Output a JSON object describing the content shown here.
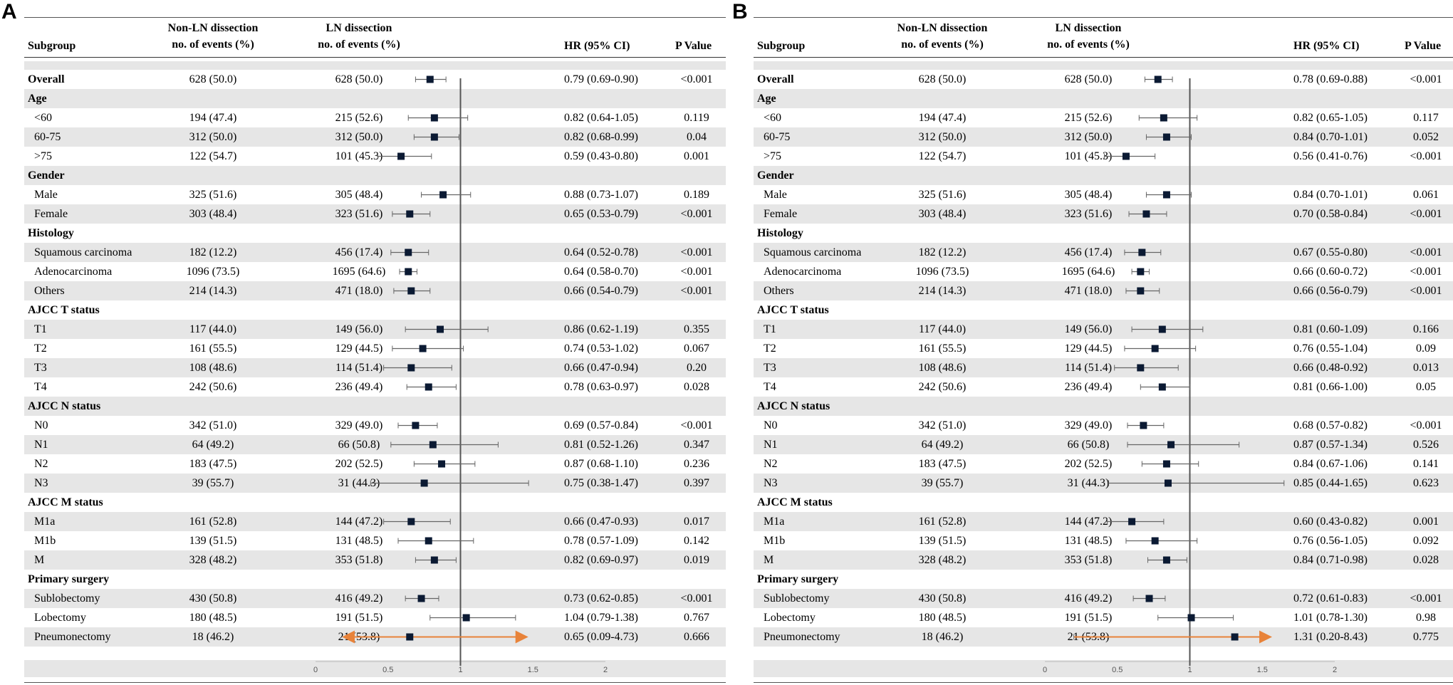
{
  "chart_data": [
    {
      "type": "forest",
      "panel": "A",
      "headers": {
        "subgroup": "Subgroup",
        "nonln_line1": "Non-LN dissection",
        "nonln_line2": "no. of events (%)",
        "ln_line1": "LN dissection",
        "ln_line2": "no. of events (%)",
        "hr": "HR (95% CI)",
        "p": "P Value"
      },
      "xlim": [
        0,
        2
      ],
      "ref_line": 1,
      "ticks": [
        {
          "v": 0,
          "t": "0"
        },
        {
          "v": 0.5,
          "t": "0.5"
        },
        {
          "v": 1,
          "t": "1"
        },
        {
          "v": 1.5,
          "t": "1.5"
        },
        {
          "v": 2,
          "t": "2"
        }
      ],
      "rows": [
        {
          "label": "Overall",
          "kind": "group",
          "nonln": "628 (50.0)",
          "ln": "628 (50.0)",
          "hr_text": "0.79 (0.69-0.90)",
          "p": "<0.001",
          "hr": 0.79,
          "lo": 0.69,
          "hi": 0.9
        },
        {
          "label": "Age",
          "kind": "group"
        },
        {
          "label": "<60",
          "kind": "item",
          "nonln": "194 (47.4)",
          "ln": "215 (52.6)",
          "hr_text": "0.82 (0.64-1.05)",
          "p": "0.119",
          "hr": 0.82,
          "lo": 0.64,
          "hi": 1.05
        },
        {
          "label": "60-75",
          "kind": "item",
          "nonln": "312 (50.0)",
          "ln": "312 (50.0)",
          "hr_text": "0.82 (0.68-0.99)",
          "p": "0.04",
          "hr": 0.82,
          "lo": 0.68,
          "hi": 0.99
        },
        {
          "label": ">75",
          "kind": "item",
          "nonln": "122 (54.7)",
          "ln": "101 (45.3)",
          "hr_text": "0.59 (0.43-0.80)",
          "p": "0.001",
          "hr": 0.59,
          "lo": 0.43,
          "hi": 0.8
        },
        {
          "label": "Gender",
          "kind": "group"
        },
        {
          "label": "Male",
          "kind": "item",
          "nonln": "325 (51.6)",
          "ln": "305 (48.4)",
          "hr_text": "0.88 (0.73-1.07)",
          "p": "0.189",
          "hr": 0.88,
          "lo": 0.73,
          "hi": 1.07
        },
        {
          "label": "Female",
          "kind": "item",
          "nonln": "303 (48.4)",
          "ln": "323 (51.6)",
          "hr_text": "0.65 (0.53-0.79)",
          "p": "<0.001",
          "hr": 0.65,
          "lo": 0.53,
          "hi": 0.79
        },
        {
          "label": "Histology",
          "kind": "group"
        },
        {
          "label": "Squamous carcinoma",
          "kind": "item",
          "nonln": "182 (12.2)",
          "ln": "456 (17.4)",
          "hr_text": "0.64 (0.52-0.78)",
          "p": "<0.001",
          "hr": 0.64,
          "lo": 0.52,
          "hi": 0.78
        },
        {
          "label": "Adenocarcinoma",
          "kind": "item",
          "nonln": "1096 (73.5)",
          "ln": "1695 (64.6)",
          "hr_text": "0.64 (0.58-0.70)",
          "p": "<0.001",
          "hr": 0.64,
          "lo": 0.58,
          "hi": 0.7
        },
        {
          "label": "Others",
          "kind": "item",
          "nonln": "214 (14.3)",
          "ln": "471 (18.0)",
          "hr_text": "0.66 (0.54-0.79)",
          "p": "<0.001",
          "hr": 0.66,
          "lo": 0.54,
          "hi": 0.79
        },
        {
          "label": "AJCC T status",
          "kind": "group"
        },
        {
          "label": "T1",
          "kind": "item",
          "nonln": "117 (44.0)",
          "ln": "149 (56.0)",
          "hr_text": "0.86 (0.62-1.19)",
          "p": "0.355",
          "hr": 0.86,
          "lo": 0.62,
          "hi": 1.19
        },
        {
          "label": "T2",
          "kind": "item",
          "nonln": "161 (55.5)",
          "ln": "129 (44.5)",
          "hr_text": "0.74 (0.53-1.02)",
          "p": "0.067",
          "hr": 0.74,
          "lo": 0.53,
          "hi": 1.02
        },
        {
          "label": "T3",
          "kind": "item",
          "nonln": "108 (48.6)",
          "ln": "114 (51.4)",
          "hr_text": "0.66 (0.47-0.94)",
          "p": "0.20",
          "hr": 0.66,
          "lo": 0.47,
          "hi": 0.94
        },
        {
          "label": "T4",
          "kind": "item",
          "nonln": "242 (50.6)",
          "ln": "236 (49.4)",
          "hr_text": "0.78 (0.63-0.97)",
          "p": "0.028",
          "hr": 0.78,
          "lo": 0.63,
          "hi": 0.97
        },
        {
          "label": "AJCC N status",
          "kind": "group"
        },
        {
          "label": "N0",
          "kind": "item",
          "nonln": "342 (51.0)",
          "ln": "329 (49.0)",
          "hr_text": "0.69 (0.57-0.84)",
          "p": "<0.001",
          "hr": 0.69,
          "lo": 0.57,
          "hi": 0.84
        },
        {
          "label": "N1",
          "kind": "item",
          "nonln": "64 (49.2)",
          "ln": "66 (50.8)",
          "hr_text": "0.81 (0.52-1.26)",
          "p": "0.347",
          "hr": 0.81,
          "lo": 0.52,
          "hi": 1.26
        },
        {
          "label": "N2",
          "kind": "item",
          "nonln": "183 (47.5)",
          "ln": "202 (52.5)",
          "hr_text": "0.87 (0.68-1.10)",
          "p": "0.236",
          "hr": 0.87,
          "lo": 0.68,
          "hi": 1.1
        },
        {
          "label": "N3",
          "kind": "item",
          "nonln": "39 (55.7)",
          "ln": "31 (44.3)",
          "hr_text": "0.75 (0.38-1.47)",
          "p": "0.397",
          "hr": 0.75,
          "lo": 0.38,
          "hi": 1.47
        },
        {
          "label": "AJCC M status",
          "kind": "group"
        },
        {
          "label": "M1a",
          "kind": "item",
          "nonln": "161 (52.8)",
          "ln": "144 (47.2)",
          "hr_text": "0.66 (0.47-0.93)",
          "p": "0.017",
          "hr": 0.66,
          "lo": 0.47,
          "hi": 0.93
        },
        {
          "label": "M1b",
          "kind": "item",
          "nonln": "139 (51.5)",
          "ln": "131 (48.5)",
          "hr_text": "0.78 (0.57-1.09)",
          "p": "0.142",
          "hr": 0.78,
          "lo": 0.57,
          "hi": 1.09
        },
        {
          "label": "M",
          "kind": "item",
          "nonln": "328 (48.2)",
          "ln": "353 (51.8)",
          "hr_text": "0.82 (0.69-0.97)",
          "p": "0.019",
          "hr": 0.82,
          "lo": 0.69,
          "hi": 0.97
        },
        {
          "label": "Primary surgery",
          "kind": "group"
        },
        {
          "label": "Sublobectomy",
          "kind": "item",
          "nonln": "430 (50.8)",
          "ln": "416 (49.2)",
          "hr_text": "0.73 (0.62-0.85)",
          "p": "<0.001",
          "hr": 0.73,
          "lo": 0.62,
          "hi": 0.85
        },
        {
          "label": "Lobectomy",
          "kind": "item",
          "nonln": "180 (48.5)",
          "ln": "191 (51.5)",
          "hr_text": "1.04 (0.79-1.38)",
          "p": "0.767",
          "hr": 1.04,
          "lo": 0.79,
          "hi": 1.38
        },
        {
          "label": "Pneumonectomy",
          "kind": "item",
          "nonln": "18 (46.2)",
          "ln": "21 (53.8)",
          "hr_text": "0.65 (0.09-4.73)",
          "p": "0.666",
          "hr": 0.65,
          "lo": 0.09,
          "hi": 4.73,
          "arrow_lo": true,
          "arrow_hi": true
        }
      ]
    },
    {
      "type": "forest",
      "panel": "B",
      "headers": {
        "subgroup": "Subgroup",
        "nonln_line1": "Non-LN dissection",
        "nonln_line2": "no. of events (%)",
        "ln_line1": "LN dissection",
        "ln_line2": "no. of events (%)",
        "hr": "HR (95% CI)",
        "p": "P Value"
      },
      "xlim": [
        0,
        2
      ],
      "ref_line": 1,
      "ticks": [
        {
          "v": 0,
          "t": "0"
        },
        {
          "v": 0.5,
          "t": "0.5"
        },
        {
          "v": 1,
          "t": "1"
        },
        {
          "v": 1.5,
          "t": "1.5"
        },
        {
          "v": 2,
          "t": "2"
        }
      ],
      "rows": [
        {
          "label": "Overall",
          "kind": "group",
          "nonln": "628 (50.0)",
          "ln": "628 (50.0)",
          "hr_text": "0.78 (0.69-0.88)",
          "p": "<0.001",
          "hr": 0.78,
          "lo": 0.69,
          "hi": 0.88
        },
        {
          "label": "Age",
          "kind": "group"
        },
        {
          "label": "<60",
          "kind": "item",
          "nonln": "194 (47.4)",
          "ln": "215 (52.6)",
          "hr_text": "0.82 (0.65-1.05)",
          "p": "0.117",
          "hr": 0.82,
          "lo": 0.65,
          "hi": 1.05
        },
        {
          "label": "60-75",
          "kind": "item",
          "nonln": "312 (50.0)",
          "ln": "312 (50.0)",
          "hr_text": "0.84 (0.70-1.01)",
          "p": "0.052",
          "hr": 0.84,
          "lo": 0.7,
          "hi": 1.01
        },
        {
          "label": ">75",
          "kind": "item",
          "nonln": "122 (54.7)",
          "ln": "101 (45.3)",
          "hr_text": "0.56 (0.41-0.76)",
          "p": "<0.001",
          "hr": 0.56,
          "lo": 0.41,
          "hi": 0.76
        },
        {
          "label": "Gender",
          "kind": "group"
        },
        {
          "label": "Male",
          "kind": "item",
          "nonln": "325 (51.6)",
          "ln": "305 (48.4)",
          "hr_text": "0.84 (0.70-1.01)",
          "p": "0.061",
          "hr": 0.84,
          "lo": 0.7,
          "hi": 1.01
        },
        {
          "label": "Female",
          "kind": "item",
          "nonln": "303 (48.4)",
          "ln": "323 (51.6)",
          "hr_text": "0.70 (0.58-0.84)",
          "p": "<0.001",
          "hr": 0.7,
          "lo": 0.58,
          "hi": 0.84
        },
        {
          "label": "Histology",
          "kind": "group"
        },
        {
          "label": "Squamous carcinoma",
          "kind": "item",
          "nonln": "182 (12.2)",
          "ln": "456 (17.4)",
          "hr_text": "0.67 (0.55-0.80)",
          "p": "<0.001",
          "hr": 0.67,
          "lo": 0.55,
          "hi": 0.8
        },
        {
          "label": "Adenocarcinoma",
          "kind": "item",
          "nonln": "1096 (73.5)",
          "ln": "1695 (64.6)",
          "hr_text": "0.66 (0.60-0.72)",
          "p": "<0.001",
          "hr": 0.66,
          "lo": 0.6,
          "hi": 0.72
        },
        {
          "label": "Others",
          "kind": "item",
          "nonln": "214 (14.3)",
          "ln": "471 (18.0)",
          "hr_text": "0.66 (0.56-0.79)",
          "p": "<0.001",
          "hr": 0.66,
          "lo": 0.56,
          "hi": 0.79
        },
        {
          "label": "AJCC T status",
          "kind": "group"
        },
        {
          "label": "T1",
          "kind": "item",
          "nonln": "117 (44.0)",
          "ln": "149 (56.0)",
          "hr_text": "0.81 (0.60-1.09)",
          "p": "0.166",
          "hr": 0.81,
          "lo": 0.6,
          "hi": 1.09
        },
        {
          "label": "T2",
          "kind": "item",
          "nonln": "161 (55.5)",
          "ln": "129 (44.5)",
          "hr_text": "0.76 (0.55-1.04)",
          "p": "0.09",
          "hr": 0.76,
          "lo": 0.55,
          "hi": 1.04
        },
        {
          "label": "T3",
          "kind": "item",
          "nonln": "108 (48.6)",
          "ln": "114 (51.4)",
          "hr_text": "0.66 (0.48-0.92)",
          "p": "0.013",
          "hr": 0.66,
          "lo": 0.48,
          "hi": 0.92
        },
        {
          "label": "T4",
          "kind": "item",
          "nonln": "242 (50.6)",
          "ln": "236 (49.4)",
          "hr_text": "0.81 (0.66-1.00)",
          "p": "0.05",
          "hr": 0.81,
          "lo": 0.66,
          "hi": 1.0
        },
        {
          "label": "AJCC N status",
          "kind": "group"
        },
        {
          "label": "N0",
          "kind": "item",
          "nonln": "342 (51.0)",
          "ln": "329 (49.0)",
          "hr_text": "0.68 (0.57-0.82)",
          "p": "<0.001",
          "hr": 0.68,
          "lo": 0.57,
          "hi": 0.82
        },
        {
          "label": "N1",
          "kind": "item",
          "nonln": "64 (49.2)",
          "ln": "66 (50.8)",
          "hr_text": "0.87 (0.57-1.34)",
          "p": "0.526",
          "hr": 0.87,
          "lo": 0.57,
          "hi": 1.34
        },
        {
          "label": "N2",
          "kind": "item",
          "nonln": "183 (47.5)",
          "ln": "202 (52.5)",
          "hr_text": "0.84 (0.67-1.06)",
          "p": "0.141",
          "hr": 0.84,
          "lo": 0.67,
          "hi": 1.06
        },
        {
          "label": "N3",
          "kind": "item",
          "nonln": "39 (55.7)",
          "ln": "31 (44.3)",
          "hr_text": "0.85 (0.44-1.65)",
          "p": "0.623",
          "hr": 0.85,
          "lo": 0.44,
          "hi": 1.65
        },
        {
          "label": "AJCC M status",
          "kind": "group"
        },
        {
          "label": "M1a",
          "kind": "item",
          "nonln": "161 (52.8)",
          "ln": "144 (47.2)",
          "hr_text": "0.60 (0.43-0.82)",
          "p": "0.001",
          "hr": 0.6,
          "lo": 0.43,
          "hi": 0.82
        },
        {
          "label": "M1b",
          "kind": "item",
          "nonln": "139 (51.5)",
          "ln": "131 (48.5)",
          "hr_text": "0.76 (0.56-1.05)",
          "p": "0.092",
          "hr": 0.76,
          "lo": 0.56,
          "hi": 1.05
        },
        {
          "label": "M",
          "kind": "item",
          "nonln": "328 (48.2)",
          "ln": "353 (51.8)",
          "hr_text": "0.84 (0.71-0.98)",
          "p": "0.028",
          "hr": 0.84,
          "lo": 0.71,
          "hi": 0.98
        },
        {
          "label": "Primary surgery",
          "kind": "group"
        },
        {
          "label": "Sublobectomy",
          "kind": "item",
          "nonln": "430 (50.8)",
          "ln": "416 (49.2)",
          "hr_text": "0.72 (0.61-0.83)",
          "p": "<0.001",
          "hr": 0.72,
          "lo": 0.61,
          "hi": 0.83
        },
        {
          "label": "Lobectomy",
          "kind": "item",
          "nonln": "180 (48.5)",
          "ln": "191 (51.5)",
          "hr_text": "1.01 (0.78-1.30)",
          "p": "0.98",
          "hr": 1.01,
          "lo": 0.78,
          "hi": 1.3
        },
        {
          "label": "Pneumonectomy",
          "kind": "item",
          "nonln": "18 (46.2)",
          "ln": "21 (53.8)",
          "hr_text": "1.31 (0.20-8.43)",
          "p": "0.775",
          "hr": 1.31,
          "lo": 0.2,
          "hi": 8.43,
          "arrow_hi": true
        }
      ]
    }
  ],
  "style": {
    "marker_color": "#0b1a33",
    "whisker_color": "#666666",
    "ref_color": "#555555",
    "arrow_color": "#e8833a",
    "shade_color": "#e6e6e6"
  }
}
